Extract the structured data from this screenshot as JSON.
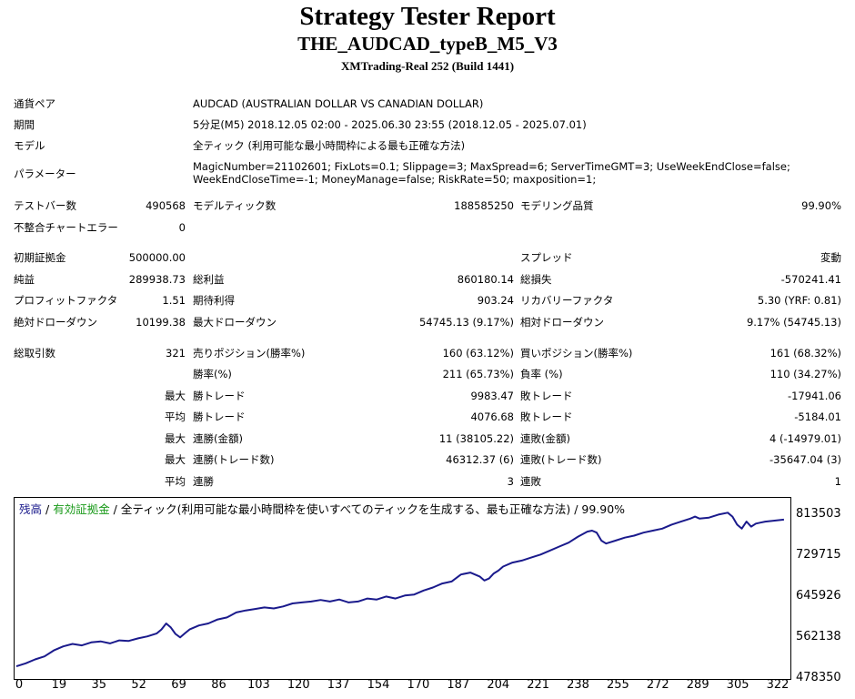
{
  "header": {
    "title": "Strategy Tester Report",
    "subtitle": "THE_AUDCAD_typeB_M5_V3",
    "server": "XMTrading-Real 252 (Build 1441)"
  },
  "info": {
    "pair_label": "通貨ペア",
    "pair_value": "AUDCAD (AUSTRALIAN DOLLAR VS CANADIAN DOLLAR)",
    "period_label": "期間",
    "period_value": "5分足(M5) 2018.12.05 02:00 - 2025.06.30 23:55 (2018.12.05 - 2025.07.01)",
    "model_label": "モデル",
    "model_value": "全ティック (利用可能な最小時間枠による最も正確な方法)",
    "params_label": "パラメーター",
    "params_line1": "MagicNumber=21102601; FixLots=0.1; Slippage=3; MaxSpread=6; ServerTimeGMT=3; UseWeekEndClose=false;",
    "params_line2": "WeekEndCloseTime=-1; MoneyManage=false; RiskRate=50; maxposition=1;"
  },
  "stats": {
    "bars_label": "テストバー数",
    "bars_value": "490568",
    "ticks_label": "モデルティック数",
    "ticks_value": "188585250",
    "quality_label": "モデリング品質",
    "quality_value": "99.90%",
    "mismatch_label": "不整合チャートエラー",
    "mismatch_value": "0",
    "deposit_label": "初期証拠金",
    "deposit_value": "500000.00",
    "spread_label": "スプレッド",
    "spread_value": "変動",
    "net_label": "純益",
    "net_value": "289938.73",
    "gross_profit_label": "総利益",
    "gross_profit_value": "860180.14",
    "gross_loss_label": "総損失",
    "gross_loss_value": "-570241.41",
    "pf_label": "プロフィットファクタ",
    "pf_value": "1.51",
    "payoff_label": "期待利得",
    "payoff_value": "903.24",
    "rf_label": "リカバリーファクタ",
    "rf_value": "5.30 (YRF: 0.81)",
    "abs_dd_label": "絶対ドローダウン",
    "abs_dd_value": "10199.38",
    "max_dd_label": "最大ドローダウン",
    "max_dd_value": "54745.13 (9.17%)",
    "rel_dd_label": "相対ドローダウン",
    "rel_dd_value": "9.17% (54745.13)",
    "trades_label": "総取引数",
    "trades_value": "321",
    "short_label": "売りポジション(勝率%)",
    "short_value": "160 (63.12%)",
    "long_label": "買いポジション(勝率%)",
    "long_value": "161 (68.32%)",
    "winrate_label": "勝率(%)",
    "winrate_value": "211 (65.73%)",
    "lossrate_label": "負率 (%)",
    "lossrate_value": "110 (34.27%)",
    "max_label": "最大",
    "avg_label": "平均",
    "largest_win_label": "勝トレード",
    "largest_win_value": "9983.47",
    "largest_loss_label": "敗トレード",
    "largest_loss_value": "-17941.06",
    "avg_win_label": "勝トレード",
    "avg_win_value": "4076.68",
    "avg_loss_label": "敗トレード",
    "avg_loss_value": "-5184.01",
    "consec_wins_amt_label": "連勝(金額)",
    "consec_wins_amt_value": "11 (38105.22)",
    "consec_loss_amt_label": "連敗(金額)",
    "consec_loss_amt_value": "4 (-14979.01)",
    "consec_wins_trades_label": "連勝(トレード数)",
    "consec_wins_trades_value": "46312.37 (6)",
    "consec_loss_trades_label": "連敗(トレード数)",
    "consec_loss_trades_value": "-35647.04 (3)",
    "avg_consec_wins_label": "連勝",
    "avg_consec_wins_value": "3",
    "avg_consec_loss_label": "連敗",
    "avg_consec_loss_value": "1"
  },
  "legend": {
    "balance": "残高",
    "sep1": " / ",
    "equity": "有効証拠金",
    "rest": " / 全ティック(利用可能な最小時間枠を使いすべてのティックを生成する、最も正確な方法) / 99.90%"
  },
  "chart_data": {
    "type": "line",
    "xlim": [
      0,
      330
    ],
    "ylim": [
      478350,
      834000
    ],
    "x_ticks": [
      "0",
      "19",
      "35",
      "52",
      "69",
      "86",
      "103",
      "120",
      "137",
      "154",
      "170",
      "187",
      "204",
      "221",
      "238",
      "255",
      "272",
      "289",
      "305",
      "322"
    ],
    "y_ticks": [
      "813503",
      "729715",
      "645926",
      "562138",
      "478350"
    ],
    "colors": {
      "balance": "#1a1a8c",
      "equity": "#1a9a1a"
    },
    "series": [
      {
        "x": [
          0,
          4,
          8,
          12,
          16,
          20,
          24,
          28,
          32,
          36,
          40,
          44,
          48,
          52,
          56,
          60,
          62,
          64,
          66,
          68,
          70,
          72,
          74,
          78,
          82,
          86,
          90,
          94,
          98,
          102,
          106,
          110,
          114,
          118,
          122,
          126,
          130,
          134,
          138,
          142,
          146,
          150,
          154,
          158,
          162,
          166,
          170,
          174,
          178,
          182,
          186,
          190,
          194,
          198,
          200,
          202,
          204,
          206,
          208,
          212,
          216,
          220,
          224,
          228,
          232,
          236,
          240,
          244,
          246,
          248,
          250,
          252,
          256,
          260,
          264,
          268,
          272,
          276,
          280,
          284,
          288,
          290,
          292,
          296,
          300,
          304,
          306,
          308,
          310,
          312,
          314,
          316,
          318,
          320,
          324,
          328
        ],
        "values": [
          500000,
          506000,
          514000,
          520000,
          532000,
          540000,
          545000,
          542000,
          548000,
          550000,
          546000,
          552000,
          551000,
          556000,
          560000,
          566000,
          574000,
          586000,
          578000,
          565000,
          558000,
          566000,
          574000,
          582000,
          586000,
          594000,
          598000,
          608000,
          612000,
          615000,
          618000,
          616000,
          620000,
          626000,
          628000,
          630000,
          633000,
          630000,
          634000,
          628000,
          630000,
          636000,
          634000,
          640000,
          636000,
          642000,
          644000,
          652000,
          658000,
          666000,
          670000,
          684000,
          688000,
          680000,
          672000,
          676000,
          686000,
          692000,
          700000,
          708000,
          712000,
          718000,
          724000,
          732000,
          740000,
          748000,
          760000,
          770000,
          772000,
          768000,
          752000,
          746000,
          752000,
          758000,
          762000,
          768000,
          772000,
          776000,
          784000,
          790000,
          796000,
          800000,
          796000,
          798000,
          804000,
          808000,
          800000,
          784000,
          776000,
          790000,
          780000,
          786000,
          788000,
          790000,
          792000,
          794000
        ]
      }
    ]
  }
}
